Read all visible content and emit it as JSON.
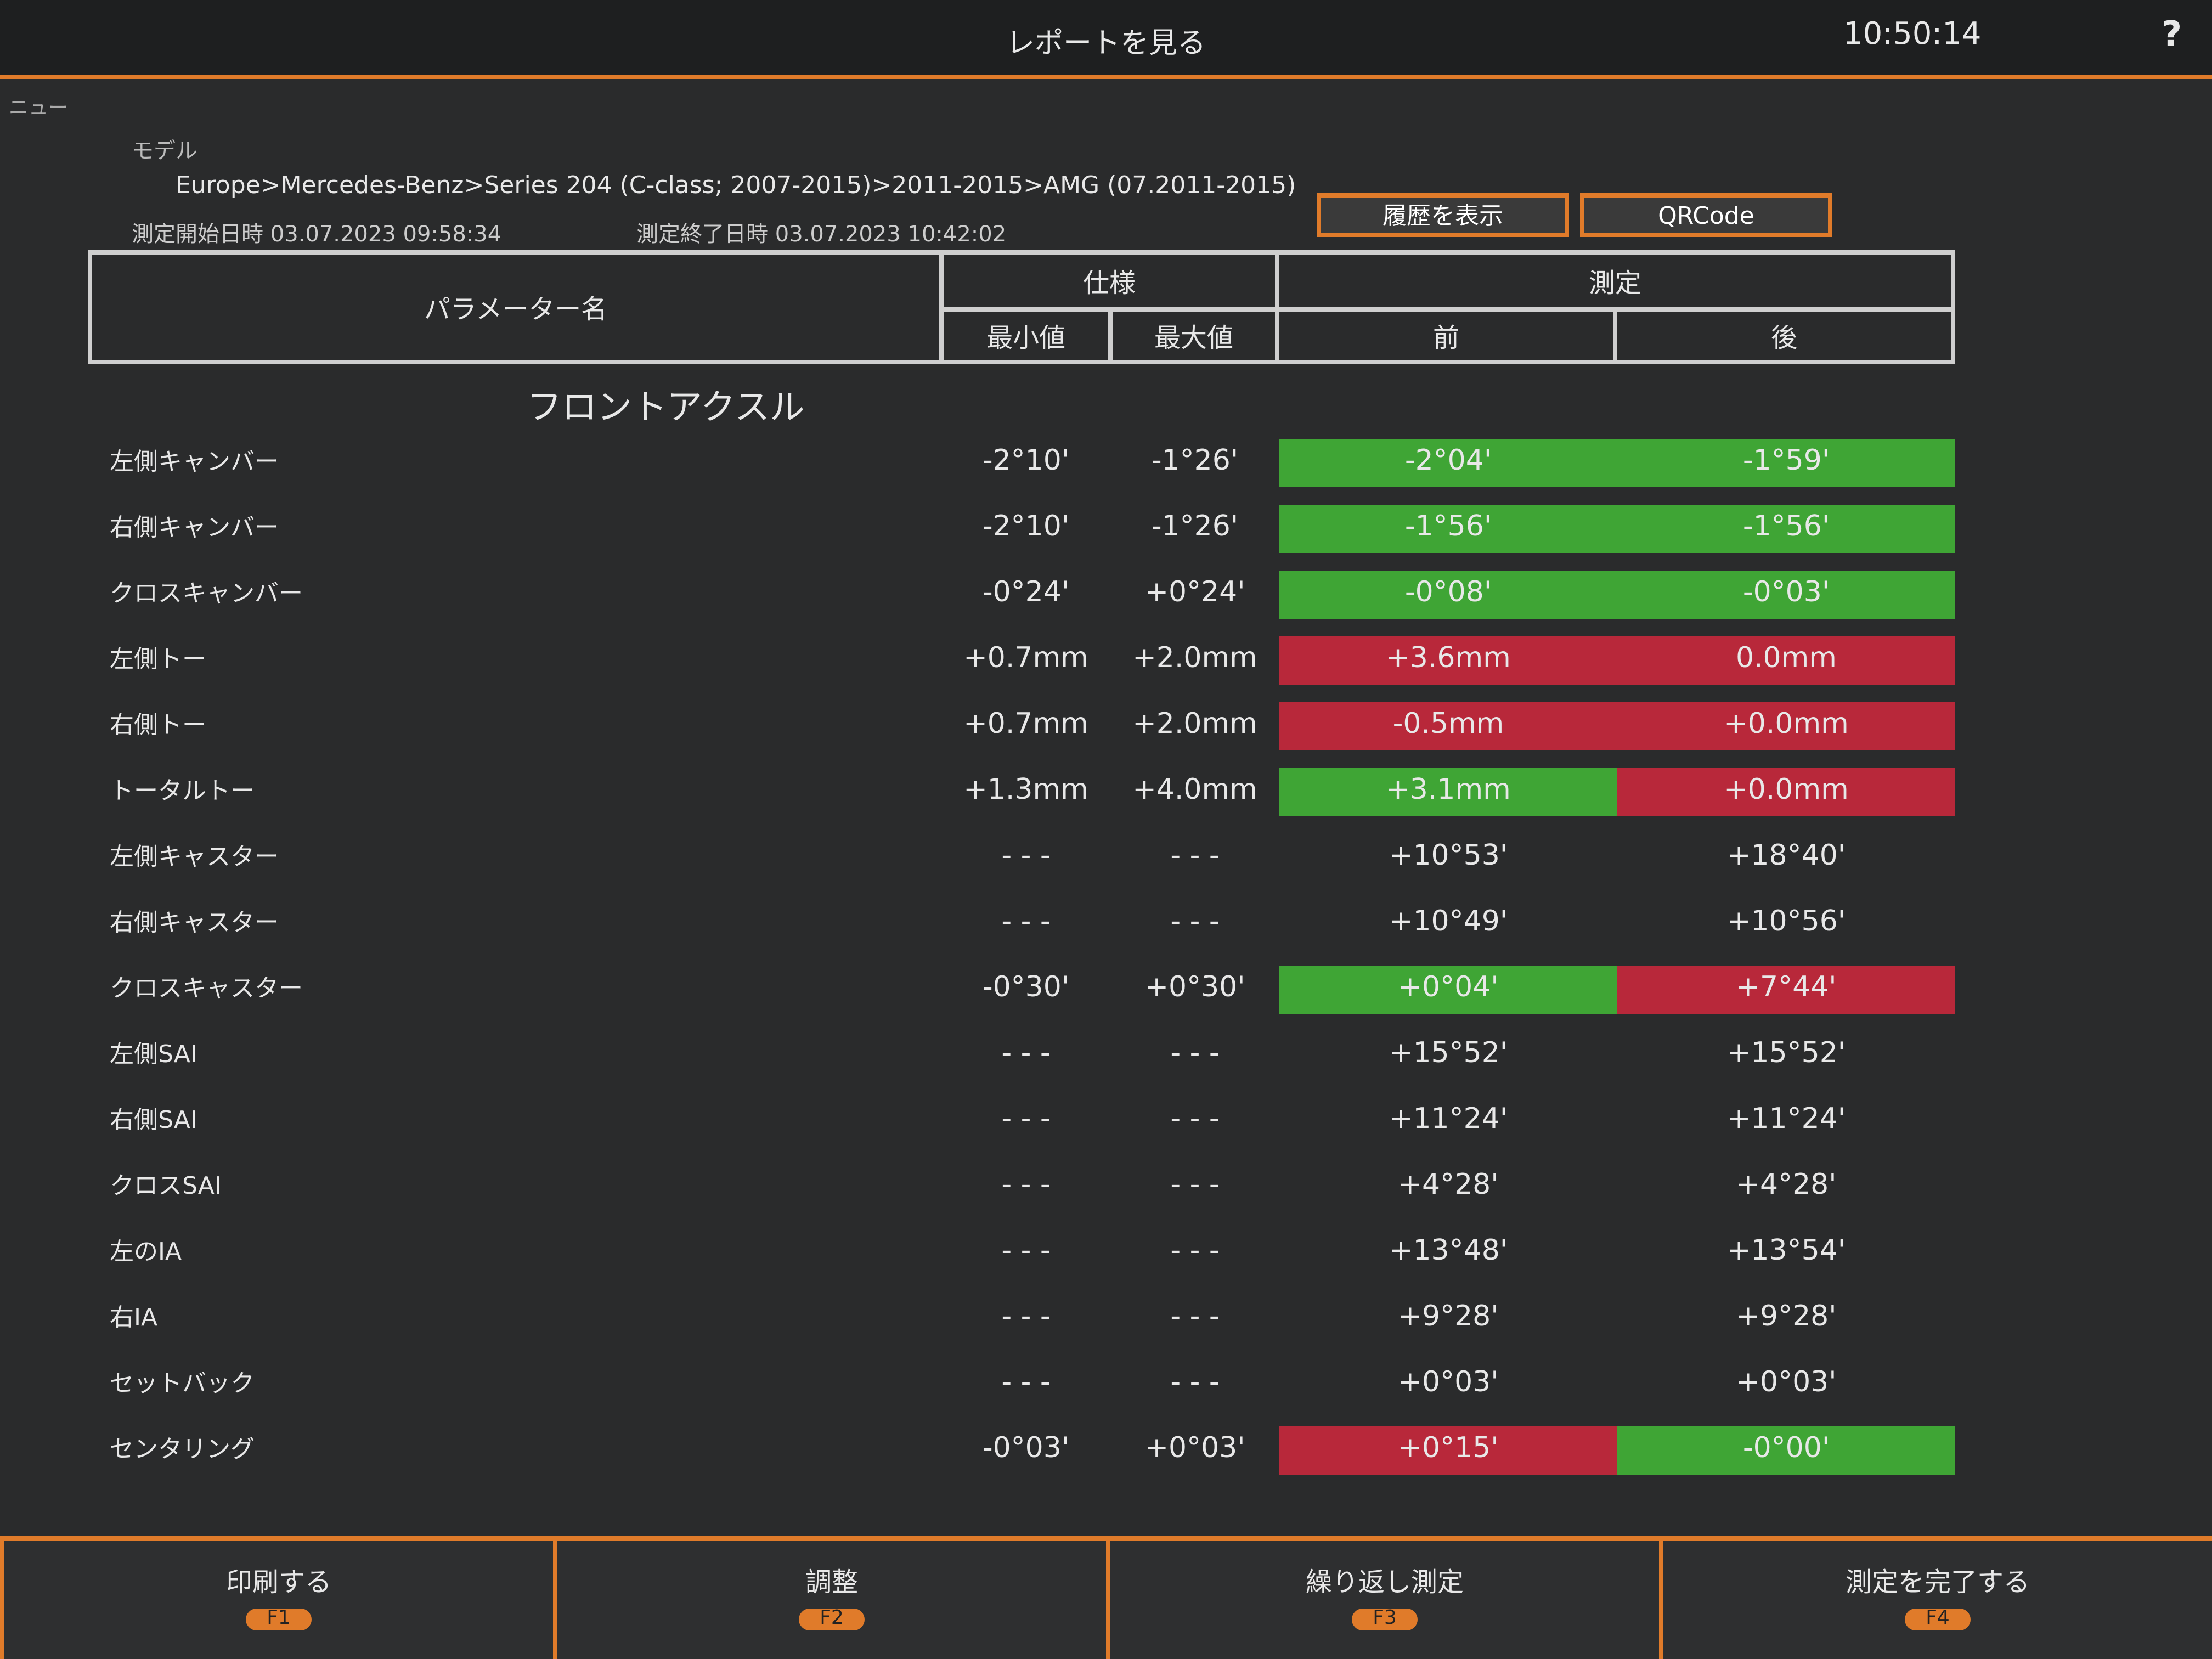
{
  "header": {
    "title": "レポートを見る",
    "clock": "10:50:14",
    "help": "?",
    "menu": "ニュー"
  },
  "info": {
    "model_label": "モデル",
    "model": "Europe>Mercedes-Benz>Series 204 (C-class; 2007-2015)>2011-2015>AMG (07.2011-2015)",
    "start_label": "測定開始日時",
    "start": "03.07.2023 09:58:34",
    "end_label": "測定終了日時",
    "end": "03.07.2023 10:42:02"
  },
  "buttons": [
    "履歴を表示",
    "QRCode"
  ],
  "table": {
    "headers": {
      "param": "パラメーター名",
      "spec": "仕様",
      "min": "最小値",
      "max": "最大値",
      "measure": "測定",
      "before": "前",
      "after": "後"
    },
    "section": "フロントアクスル",
    "rows": [
      {
        "name": "左側キャンバー",
        "min": "-2°10'",
        "max": "-1°26'",
        "before": "-2°04'",
        "after": "-1°59'",
        "before_color": "#3fa535",
        "after_color": "#3fa535"
      },
      {
        "name": "右側キャンバー",
        "min": "-2°10'",
        "max": "-1°26'",
        "before": "-1°56'",
        "after": "-1°56'",
        "before_color": "#3fa535",
        "after_color": "#3fa535"
      },
      {
        "name": "クロスキャンバー",
        "min": "-0°24'",
        "max": "+0°24'",
        "before": "-0°08'",
        "after": "-0°03'",
        "before_color": "#3fa535",
        "after_color": "#3fa535"
      },
      {
        "name": "左側トー",
        "min": "+0.7mm",
        "max": "+2.0mm",
        "before": "+3.6mm",
        "after": "0.0mm",
        "before_color": "#b8283a",
        "after_color": "#b8283a"
      },
      {
        "name": "右側トー",
        "min": "+0.7mm",
        "max": "+2.0mm",
        "before": "-0.5mm",
        "after": "+0.0mm",
        "before_color": "#b8283a",
        "after_color": "#b8283a"
      },
      {
        "name": "トータルトー",
        "min": "+1.3mm",
        "max": "+4.0mm",
        "before": "+3.1mm",
        "after": "+0.0mm",
        "before_color": "#3fa535",
        "after_color": "#b8283a"
      },
      {
        "name": "左側キャスター",
        "min": "- - -",
        "max": "- - -",
        "before": "+10°53'",
        "after": "+18°40'",
        "before_color": null,
        "after_color": null
      },
      {
        "name": "右側キャスター",
        "min": "- - -",
        "max": "- - -",
        "before": "+10°49'",
        "after": "+10°56'",
        "before_color": null,
        "after_color": null
      },
      {
        "name": "クロスキャスター",
        "min": "-0°30'",
        "max": "+0°30'",
        "before": "+0°04'",
        "after": "+7°44'",
        "before_color": "#3fa535",
        "after_color": "#b8283a"
      },
      {
        "name": "左側SAI",
        "min": "- - -",
        "max": "- - -",
        "before": "+15°52'",
        "after": "+15°52'",
        "before_color": null,
        "after_color": null
      },
      {
        "name": "右側SAI",
        "min": "- - -",
        "max": "- - -",
        "before": "+11°24'",
        "after": "+11°24'",
        "before_color": null,
        "after_color": null
      },
      {
        "name": "クロスSAI",
        "min": "- - -",
        "max": "- - -",
        "before": "+4°28'",
        "after": "+4°28'",
        "before_color": null,
        "after_color": null
      },
      {
        "name": "左のIA",
        "min": "- - -",
        "max": "- - -",
        "before": "+13°48'",
        "after": "+13°54'",
        "before_color": null,
        "after_color": null
      },
      {
        "name": "右IA",
        "min": "- - -",
        "max": "- - -",
        "before": "+9°28'",
        "after": "+9°28'",
        "before_color": null,
        "after_color": null
      },
      {
        "name": "セットバック",
        "min": "- - -",
        "max": "- - -",
        "before": "+0°03'",
        "after": "+0°03'",
        "before_color": null,
        "after_color": null
      },
      {
        "name": "センタリング",
        "min": "-0°03'",
        "max": "+0°03'",
        "before": "+0°15'",
        "after": "-0°00'",
        "before_color": "#b8283a",
        "after_color": "#3fa535"
      }
    ]
  },
  "footer": [
    {
      "label": "印刷する",
      "key": "F1"
    },
    {
      "label": "調整",
      "key": "F2"
    },
    {
      "label": "繰り返し測定",
      "key": "F3"
    },
    {
      "label": "測定を完了する",
      "key": "F4"
    }
  ]
}
